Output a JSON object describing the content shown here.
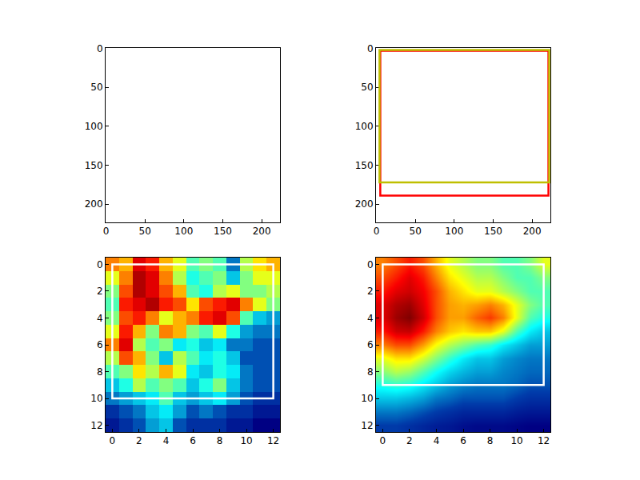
{
  "chart_data": [
    {
      "type": "image",
      "xlim": [
        -0.5,
        223.5
      ],
      "ylim": [
        223.5,
        -0.5
      ],
      "xticks": [
        0,
        50,
        100,
        150,
        200
      ],
      "yticks": [
        0,
        50,
        100,
        150,
        200
      ],
      "boxes": []
    },
    {
      "type": "image",
      "xlim": [
        -0.5,
        223.5
      ],
      "ylim": [
        223.5,
        -0.5
      ],
      "xticks": [
        0,
        50,
        100,
        150,
        200
      ],
      "yticks": [
        0,
        50,
        100,
        150,
        200
      ],
      "boxes": [
        {
          "color": "red",
          "x0": 5,
          "y0": 3,
          "x1": 221,
          "y1": 189
        },
        {
          "color": "yellow",
          "x0": 4,
          "y0": 2,
          "x1": 222,
          "y1": 172
        }
      ]
    },
    {
      "type": "heatmap",
      "xlim": [
        -0.5,
        12.5
      ],
      "ylim": [
        12.5,
        -0.5
      ],
      "xticks": [
        0,
        2,
        4,
        6,
        8,
        10,
        12
      ],
      "yticks": [
        0,
        2,
        4,
        6,
        8,
        10,
        12
      ],
      "color_range": [
        0,
        1
      ],
      "cells": [
        [
          0.75,
          0.7,
          0.9,
          0.85,
          0.7,
          0.6,
          0.45,
          0.5,
          0.45,
          0.2,
          0.55,
          0.65,
          0.7
        ],
        [
          0.6,
          0.75,
          0.95,
          0.9,
          0.75,
          0.55,
          0.4,
          0.45,
          0.5,
          0.3,
          0.5,
          0.6,
          0.6
        ],
        [
          0.5,
          0.8,
          0.95,
          0.9,
          0.8,
          0.7,
          0.45,
          0.4,
          0.55,
          0.6,
          0.5,
          0.5,
          0.55
        ],
        [
          0.45,
          0.85,
          0.9,
          0.95,
          0.85,
          0.8,
          0.65,
          0.8,
          0.85,
          0.9,
          0.75,
          0.6,
          0.5
        ],
        [
          0.5,
          0.8,
          0.85,
          0.75,
          0.6,
          0.7,
          0.75,
          0.85,
          0.9,
          0.8,
          0.45,
          0.3,
          0.25
        ],
        [
          0.6,
          0.85,
          0.7,
          0.5,
          0.75,
          0.7,
          0.5,
          0.45,
          0.6,
          0.4,
          0.25,
          0.2,
          0.2
        ],
        [
          0.75,
          0.9,
          0.55,
          0.45,
          0.5,
          0.35,
          0.4,
          0.3,
          0.35,
          0.2,
          0.2,
          0.15,
          0.15
        ],
        [
          0.55,
          0.8,
          0.7,
          0.5,
          0.3,
          0.55,
          0.45,
          0.35,
          0.4,
          0.3,
          0.15,
          0.15,
          0.15
        ],
        [
          0.45,
          0.5,
          0.65,
          0.55,
          0.7,
          0.6,
          0.35,
          0.3,
          0.4,
          0.35,
          0.2,
          0.15,
          0.15
        ],
        [
          0.3,
          0.4,
          0.55,
          0.45,
          0.5,
          0.45,
          0.3,
          0.4,
          0.5,
          0.3,
          0.2,
          0.15,
          0.15
        ],
        [
          0.2,
          0.25,
          0.3,
          0.35,
          0.45,
          0.3,
          0.25,
          0.3,
          0.35,
          0.25,
          0.15,
          0.1,
          0.1
        ],
        [
          0.1,
          0.15,
          0.2,
          0.3,
          0.35,
          0.25,
          0.15,
          0.2,
          0.15,
          0.1,
          0.1,
          0.05,
          0.05
        ],
        [
          0.05,
          0.1,
          0.15,
          0.25,
          0.3,
          0.15,
          0.1,
          0.1,
          0.1,
          0.05,
          0.05,
          0.0,
          0.0
        ]
      ],
      "boxes": [
        {
          "color": "white",
          "x0": 0,
          "y0": 0,
          "x1": 12,
          "y1": 10
        }
      ]
    },
    {
      "type": "heatmap",
      "xlim": [
        -0.5,
        12.5
      ],
      "ylim": [
        12.5,
        -0.5
      ],
      "xticks": [
        0,
        2,
        4,
        6,
        8,
        10,
        12
      ],
      "yticks": [
        0,
        2,
        4,
        6,
        8,
        10,
        12
      ],
      "color_range": [
        0,
        1
      ],
      "cells": [
        [
          0.75,
          0.8,
          0.85,
          0.8,
          0.7,
          0.6,
          0.55,
          0.5,
          0.5,
          0.45,
          0.45,
          0.5,
          0.6
        ],
        [
          0.8,
          0.85,
          0.9,
          0.85,
          0.75,
          0.65,
          0.6,
          0.55,
          0.55,
          0.5,
          0.45,
          0.45,
          0.5
        ],
        [
          0.85,
          0.9,
          0.92,
          0.88,
          0.8,
          0.7,
          0.65,
          0.6,
          0.6,
          0.55,
          0.5,
          0.45,
          0.45
        ],
        [
          0.9,
          0.95,
          0.97,
          0.9,
          0.8,
          0.72,
          0.7,
          0.72,
          0.75,
          0.7,
          0.6,
          0.5,
          0.45
        ],
        [
          0.9,
          0.97,
          1.0,
          0.92,
          0.8,
          0.72,
          0.72,
          0.78,
          0.82,
          0.75,
          0.6,
          0.45,
          0.4
        ],
        [
          0.85,
          0.92,
          0.93,
          0.85,
          0.75,
          0.68,
          0.65,
          0.68,
          0.68,
          0.6,
          0.45,
          0.35,
          0.3
        ],
        [
          0.75,
          0.8,
          0.8,
          0.72,
          0.62,
          0.55,
          0.5,
          0.45,
          0.42,
          0.35,
          0.3,
          0.25,
          0.25
        ],
        [
          0.6,
          0.65,
          0.65,
          0.58,
          0.5,
          0.42,
          0.35,
          0.3,
          0.3,
          0.25,
          0.22,
          0.2,
          0.2
        ],
        [
          0.5,
          0.55,
          0.52,
          0.45,
          0.38,
          0.32,
          0.28,
          0.25,
          0.25,
          0.22,
          0.2,
          0.18,
          0.18
        ],
        [
          0.4,
          0.42,
          0.4,
          0.35,
          0.3,
          0.25,
          0.22,
          0.2,
          0.2,
          0.2,
          0.18,
          0.15,
          0.15
        ],
        [
          0.3,
          0.3,
          0.28,
          0.25,
          0.2,
          0.18,
          0.15,
          0.15,
          0.15,
          0.15,
          0.12,
          0.1,
          0.1
        ],
        [
          0.2,
          0.2,
          0.18,
          0.15,
          0.12,
          0.1,
          0.08,
          0.08,
          0.08,
          0.08,
          0.06,
          0.05,
          0.05
        ],
        [
          0.12,
          0.12,
          0.1,
          0.08,
          0.06,
          0.05,
          0.03,
          0.02,
          0.02,
          0.02,
          0.01,
          0.0,
          0.0
        ]
      ],
      "boxes": [
        {
          "color": "white",
          "x0": 0,
          "y0": 0,
          "x1": 12,
          "y1": 9
        }
      ]
    }
  ]
}
